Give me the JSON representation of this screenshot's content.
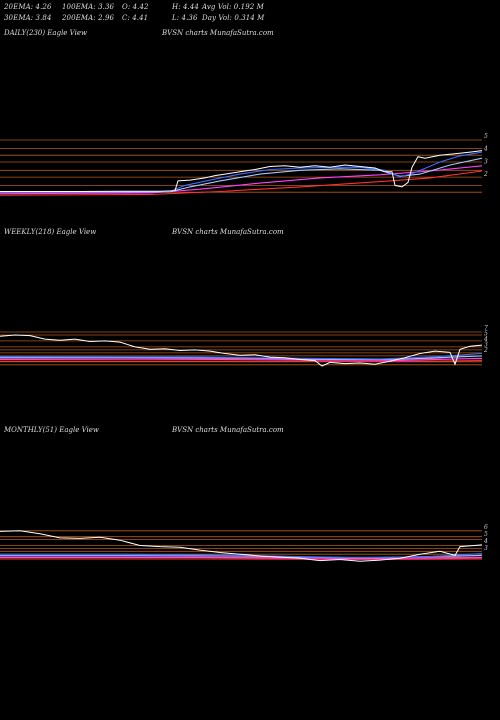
{
  "header": {
    "row1": [
      "20EMA: 4.26",
      "100EMA: 3.36",
      "O: 4.42",
      "H: 4.44",
      "Avg Vol: 0.192  M"
    ],
    "row2": [
      "30EMA: 3.84",
      "200EMA: 2.96",
      "C: 4.41",
      "L: 4.36",
      "Day Vol: 0.314  M"
    ]
  },
  "panels": [
    {
      "label": "DAILY(230) Eagle  View",
      "source": "BVSN  charts MunafaSutra.com"
    },
    {
      "label": "WEEKLY(218) Eagle  View",
      "source": "BVSN  charts MunafaSutra.com"
    },
    {
      "label": "MONTHLY(51) Eagle  View",
      "source": "BVSN  charts MunafaSutra.com"
    }
  ],
  "colors": {
    "price": "#ffffff",
    "ema20": "#3a6bff",
    "ema30": "#a0c8ff",
    "ema100": "#ff40ff",
    "ema200": "#ff3030",
    "grid": "#d2691e",
    "bg": "#000000"
  },
  "chart_data": [
    {
      "type": "line",
      "title": "DAILY(230) Eagle  View",
      "y_ticks": [
        "5",
        "4",
        "3",
        "2"
      ],
      "ylim": [
        1.3,
        5.4
      ],
      "grid_levels": [
        5,
        4.45,
        4,
        3.55,
        3,
        2.55,
        2,
        1.55
      ],
      "n": 230,
      "series": [
        {
          "role": "price",
          "points": [
            [
              0,
              1.6
            ],
            [
              40,
              1.6
            ],
            [
              80,
              1.6
            ],
            [
              120,
              1.62
            ],
            [
              160,
              1.62
            ],
            [
              175,
              1.65
            ],
            [
              178,
              2.3
            ],
            [
              190,
              2.35
            ],
            [
              205,
              2.5
            ],
            [
              215,
              2.65
            ],
            [
              225,
              2.75
            ],
            [
              240,
              2.9
            ],
            [
              255,
              3.05
            ],
            [
              270,
              3.25
            ],
            [
              285,
              3.3
            ],
            [
              300,
              3.2
            ],
            [
              315,
              3.3
            ],
            [
              330,
              3.2
            ],
            [
              345,
              3.35
            ],
            [
              360,
              3.25
            ],
            [
              375,
              3.15
            ],
            [
              385,
              2.9
            ],
            [
              392,
              2.9
            ],
            [
              395,
              2.0
            ],
            [
              402,
              1.9
            ],
            [
              408,
              2.2
            ],
            [
              412,
              3.2
            ],
            [
              418,
              3.9
            ],
            [
              425,
              3.8
            ],
            [
              440,
              4.0
            ],
            [
              455,
              4.1
            ],
            [
              470,
              4.2
            ],
            [
              482,
              4.3
            ]
          ]
        },
        {
          "role": "ema20",
          "points": [
            [
              0,
              1.58
            ],
            [
              170,
              1.6
            ],
            [
              185,
              2.0
            ],
            [
              210,
              2.35
            ],
            [
              240,
              2.75
            ],
            [
              270,
              3.05
            ],
            [
              300,
              3.15
            ],
            [
              330,
              3.2
            ],
            [
              360,
              3.2
            ],
            [
              385,
              3.0
            ],
            [
              400,
              2.55
            ],
            [
              415,
              2.85
            ],
            [
              440,
              3.55
            ],
            [
              460,
              3.95
            ],
            [
              482,
              4.2
            ]
          ]
        },
        {
          "role": "ema30",
          "points": [
            [
              0,
              1.55
            ],
            [
              170,
              1.58
            ],
            [
              190,
              1.9
            ],
            [
              220,
              2.3
            ],
            [
              260,
              2.75
            ],
            [
              300,
              3.0
            ],
            [
              340,
              3.1
            ],
            [
              380,
              3.0
            ],
            [
              400,
              2.6
            ],
            [
              420,
              2.75
            ],
            [
              450,
              3.35
            ],
            [
              482,
              3.8
            ]
          ]
        },
        {
          "role": "ema100",
          "points": [
            [
              0,
              1.45
            ],
            [
              150,
              1.5
            ],
            [
              200,
              1.75
            ],
            [
              260,
              2.15
            ],
            [
              320,
              2.5
            ],
            [
              380,
              2.7
            ],
            [
              430,
              2.95
            ],
            [
              482,
              3.3
            ]
          ]
        },
        {
          "role": "ema200",
          "points": [
            [
              0,
              1.35
            ],
            [
              150,
              1.4
            ],
            [
              220,
              1.6
            ],
            [
              300,
              1.9
            ],
            [
              380,
              2.25
            ],
            [
              430,
              2.5
            ],
            [
              482,
              2.95
            ]
          ]
        }
      ]
    },
    {
      "type": "line",
      "title": "WEEKLY(218) Eagle  View",
      "y_ticks": [
        "7",
        "5",
        "4",
        "3",
        "2"
      ],
      "ylim": [
        0.8,
        8.5
      ],
      "grid_levels": [
        7.5,
        7,
        6,
        5,
        4.5,
        4,
        3.5,
        3,
        2.5,
        2
      ],
      "n": 218,
      "series": [
        {
          "role": "price",
          "points": [
            [
              0,
              6.8
            ],
            [
              15,
              7.0
            ],
            [
              30,
              6.9
            ],
            [
              45,
              6.3
            ],
            [
              60,
              6.1
            ],
            [
              75,
              6.3
            ],
            [
              90,
              5.9
            ],
            [
              105,
              6.0
            ],
            [
              120,
              5.8
            ],
            [
              135,
              5.0
            ],
            [
              150,
              4.6
            ],
            [
              165,
              4.7
            ],
            [
              180,
              4.4
            ],
            [
              195,
              4.5
            ],
            [
              210,
              4.3
            ],
            [
              225,
              3.9
            ],
            [
              240,
              3.6
            ],
            [
              255,
              3.7
            ],
            [
              270,
              3.3
            ],
            [
              285,
              3.2
            ],
            [
              300,
              2.9
            ],
            [
              315,
              2.7
            ],
            [
              322,
              1.8
            ],
            [
              330,
              2.4
            ],
            [
              345,
              2.2
            ],
            [
              360,
              2.3
            ],
            [
              375,
              2.1
            ],
            [
              390,
              2.6
            ],
            [
              405,
              3.2
            ],
            [
              420,
              3.9
            ],
            [
              435,
              4.3
            ],
            [
              450,
              4.1
            ],
            [
              455,
              2.1
            ],
            [
              460,
              4.6
            ],
            [
              470,
              5.1
            ],
            [
              482,
              5.3
            ]
          ]
        },
        {
          "role": "ema20",
          "points": [
            [
              0,
              3.4
            ],
            [
              100,
              3.35
            ],
            [
              200,
              3.3
            ],
            [
              300,
              3.1
            ],
            [
              380,
              3.0
            ],
            [
              430,
              3.3
            ],
            [
              482,
              3.9
            ]
          ]
        },
        {
          "role": "ema30",
          "points": [
            [
              0,
              3.2
            ],
            [
              120,
              3.2
            ],
            [
              240,
              3.15
            ],
            [
              330,
              2.9
            ],
            [
              400,
              2.95
            ],
            [
              482,
              3.5
            ]
          ]
        },
        {
          "role": "ema100",
          "points": [
            [
              0,
              2.9
            ],
            [
              150,
              2.95
            ],
            [
              300,
              2.85
            ],
            [
              400,
              2.75
            ],
            [
              482,
              3.1
            ]
          ]
        },
        {
          "role": "ema200",
          "points": [
            [
              0,
              2.6
            ],
            [
              150,
              2.6
            ],
            [
              300,
              2.6
            ],
            [
              400,
              2.55
            ],
            [
              482,
              2.7
            ]
          ]
        }
      ]
    },
    {
      "type": "line",
      "title": "MONTHLY(51) Eagle  View",
      "y_ticks": [
        "6",
        "5",
        "4",
        "3"
      ],
      "ylim": [
        0.8,
        8.5
      ],
      "grid_levels": [
        7.5,
        6.5,
        6,
        5,
        4.5,
        4,
        3.5,
        3
      ],
      "n": 51,
      "series": [
        {
          "role": "price",
          "points": [
            [
              0,
              7.4
            ],
            [
              20,
              7.5
            ],
            [
              40,
              7.0
            ],
            [
              60,
              6.3
            ],
            [
              80,
              6.2
            ],
            [
              100,
              6.4
            ],
            [
              120,
              5.9
            ],
            [
              140,
              5.0
            ],
            [
              160,
              4.8
            ],
            [
              180,
              4.7
            ],
            [
              200,
              4.2
            ],
            [
              220,
              3.8
            ],
            [
              240,
              3.5
            ],
            [
              260,
              3.2
            ],
            [
              280,
              3.0
            ],
            [
              300,
              2.8
            ],
            [
              320,
              2.4
            ],
            [
              340,
              2.6
            ],
            [
              360,
              2.3
            ],
            [
              380,
              2.5
            ],
            [
              400,
              2.8
            ],
            [
              420,
              3.5
            ],
            [
              440,
              4.0
            ],
            [
              455,
              3.3
            ],
            [
              460,
              4.8
            ],
            [
              482,
              5.1
            ]
          ]
        },
        {
          "role": "ema20",
          "points": [
            [
              0,
              3.5
            ],
            [
              120,
              3.5
            ],
            [
              240,
              3.3
            ],
            [
              360,
              2.9
            ],
            [
              430,
              3.1
            ],
            [
              482,
              3.6
            ]
          ]
        },
        {
          "role": "ema30",
          "points": [
            [
              0,
              3.25
            ],
            [
              120,
              3.25
            ],
            [
              240,
              3.2
            ],
            [
              360,
              2.85
            ],
            [
              482,
              3.3
            ]
          ]
        },
        {
          "role": "ema100",
          "points": [
            [
              0,
              2.95
            ],
            [
              200,
              2.95
            ],
            [
              360,
              2.75
            ],
            [
              482,
              2.9
            ]
          ]
        },
        {
          "role": "ema200",
          "points": [
            [
              0,
              2.7
            ],
            [
              200,
              2.7
            ],
            [
              360,
              2.6
            ],
            [
              482,
              2.7
            ]
          ]
        }
      ]
    }
  ]
}
